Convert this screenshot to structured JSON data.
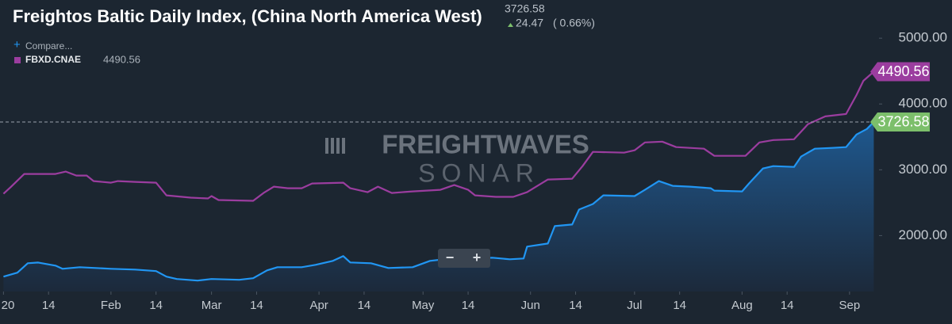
{
  "chart_data": {
    "type": "line",
    "title": "Freightos Baltic Daily Index, (China North America West)",
    "xlim": [
      0,
      253.5
    ],
    "xticks": [
      {
        "value": 1,
        "label": "20"
      },
      14,
      {
        "value": 32,
        "label": "Feb"
      },
      {
        "value": 45,
        "label": "14"
      },
      {
        "value": 61,
        "label": "Mar"
      },
      {
        "value": 74,
        "label": "14"
      },
      {
        "value": 92,
        "label": "Apr"
      },
      {
        "value": 105,
        "label": "14"
      },
      {
        "value": 122,
        "label": "May"
      },
      {
        "value": 135,
        "label": "14"
      },
      {
        "value": 153,
        "label": "Jun"
      },
      {
        "value": 166,
        "label": "14"
      },
      {
        "value": 183,
        "label": "Jul"
      },
      {
        "value": 196,
        "label": "14"
      },
      {
        "value": 214,
        "label": "Aug"
      },
      {
        "value": 227,
        "label": "14"
      },
      {
        "value": 245,
        "label": "Sep"
      }
    ],
    "ylim": [
      1150,
      5580
    ],
    "yticks": [
      {
        "value": 2000,
        "label": "2000.00"
      },
      {
        "value": 3000,
        "label": "3000.00"
      },
      {
        "value": 4000,
        "label": "4000.00"
      },
      {
        "value": 5000,
        "label": "5000.00"
      }
    ],
    "grid": false,
    "series": [
      {
        "color": "#2196f3",
        "area": true,
        "badge_color": "#7cbf6b",
        "x": [
          1,
          5,
          8,
          11,
          16,
          18,
          23,
          32,
          39,
          45,
          48,
          51,
          57,
          61,
          69,
          73,
          77,
          80,
          87,
          91,
          96,
          99,
          101,
          107,
          112,
          119,
          124,
          128,
          142,
          147,
          151,
          152,
          158,
          160,
          165,
          167,
          171,
          174,
          183,
          186,
          190,
          194,
          199,
          205,
          206,
          214,
          216,
          220,
          223,
          229,
          231,
          235,
          240,
          244,
          247,
          250,
          252
        ],
        "values": [
          1376,
          1436,
          1580,
          1590,
          1544,
          1496,
          1520,
          1496,
          1484,
          1460,
          1376,
          1340,
          1316,
          1340,
          1328,
          1352,
          1472,
          1520,
          1520,
          1556,
          1616,
          1688,
          1592,
          1580,
          1508,
          1520,
          1616,
          1640,
          1664,
          1640,
          1652,
          1832,
          1880,
          2144,
          2168,
          2396,
          2480,
          2612,
          2600,
          2696,
          2828,
          2756,
          2744,
          2720,
          2684,
          2672,
          2792,
          3020,
          3056,
          3044,
          3200,
          3320,
          3332,
          3344,
          3536,
          3620,
          3726.58
        ]
      },
      {
        "name": "FBXD.CNAE",
        "color": "#9b3d9f",
        "area": false,
        "badge_color": "#9b3d9f",
        "x": [
          1,
          3,
          7,
          16,
          19,
          22,
          25,
          27,
          32,
          34,
          39,
          45,
          48,
          55,
          60,
          61,
          63,
          73,
          76,
          79,
          83,
          87,
          90,
          99,
          101,
          106,
          109,
          113,
          119,
          127,
          131,
          135,
          137,
          143,
          148,
          152,
          158,
          165,
          168,
          171,
          180,
          183,
          186,
          191,
          195,
          203,
          206,
          215,
          219,
          223,
          229,
          233,
          238,
          244,
          247,
          249,
          252
        ],
        "values": [
          2636,
          2732,
          2936,
          2936,
          2972,
          2912,
          2912,
          2828,
          2804,
          2828,
          2816,
          2804,
          2612,
          2576,
          2564,
          2600,
          2540,
          2528,
          2648,
          2744,
          2720,
          2720,
          2792,
          2804,
          2720,
          2660,
          2744,
          2648,
          2672,
          2696,
          2768,
          2696,
          2612,
          2588,
          2588,
          2660,
          2852,
          2864,
          3056,
          3272,
          3260,
          3296,
          3416,
          3428,
          3344,
          3320,
          3212,
          3212,
          3416,
          3452,
          3464,
          3692,
          3812,
          3848,
          4136,
          4352,
          4490.56
        ]
      }
    ]
  },
  "header": {
    "change": "24.47",
    "change_pct": "( 0.66%)"
  },
  "controls": {
    "compare": "Compare...",
    "zoom_out": "−",
    "zoom_in": "+"
  },
  "watermark": [
    "FREIGHTWAVES",
    "SONAR"
  ]
}
